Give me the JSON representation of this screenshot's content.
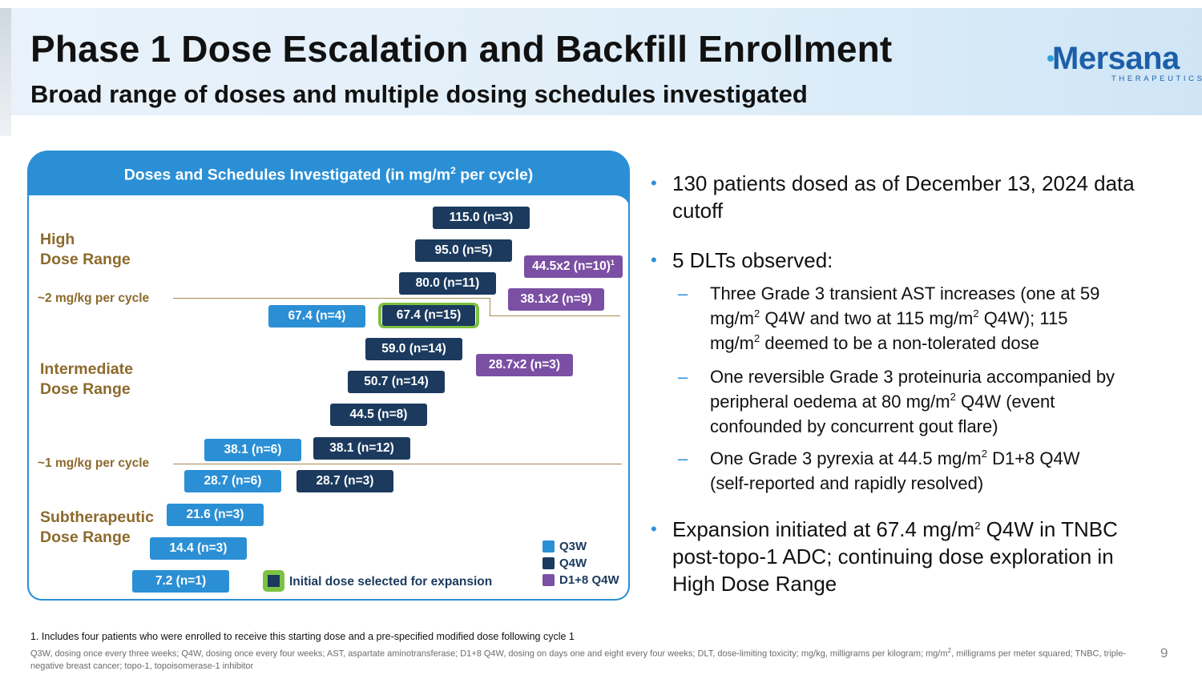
{
  "header": {
    "title": "Phase 1 Dose Escalation and Backfill Enrollment",
    "subtitle": "Broad range of doses and multiple dosing schedules investigated",
    "logo_text": "Mersana",
    "logo_sub": "THERAPEUTICS",
    "page_number": "9"
  },
  "panel": {
    "title_pre": "Doses and Schedules Investigated (in mg/m",
    "title_sup": "2",
    "title_post": " per cycle)",
    "ranges": {
      "high_l1": "High",
      "high_l2": "Dose Range",
      "intermediate_l1": "Intermediate",
      "intermediate_l2": "Dose Range",
      "sub_l1": "Subtherapeutic",
      "sub_l2": "Dose Range"
    },
    "threshold_2": "~2 mg/kg per cycle",
    "threshold_1": "~1 mg/kg per cycle",
    "bars": {
      "q4w_115": "115.0 (n=3)",
      "q4w_95": "95.0 (n=5)",
      "d18_445": "44.5x2 (n=10)",
      "d18_445_sup": "1",
      "q4w_80": "80.0 (n=11)",
      "d18_381": "38.1x2 (n=9)",
      "q3w_674": "67.4 (n=4)",
      "q4w_674": "67.4 (n=15)",
      "q4w_59": "59.0 (n=14)",
      "d18_287": "28.7x2 (n=3)",
      "q4w_507": "50.7 (n=14)",
      "q4w_445": "44.5 (n=8)",
      "q3w_381": "38.1 (n=6)",
      "q4w_381": "38.1 (n=12)",
      "q3w_287": "28.7 (n=6)",
      "q4w_287": "28.7 (n=3)",
      "q3w_216": "21.6 (n=3)",
      "q3w_144": "14.4 (n=3)",
      "q3w_72": "7.2 (n=1)"
    },
    "legend": {
      "q3w": "Q3W",
      "q4w": "Q4W",
      "d18": "D1+8 Q4W"
    },
    "expansion_label": "Initial dose selected for expansion",
    "colors": {
      "q3w": "#2b8fd5",
      "q4w": "#1b3a5e",
      "d18": "#7b4fa3",
      "highlight": "#7dc142",
      "range_text": "#8c6a2c"
    }
  },
  "bullets": {
    "b1": "130 patients dosed as of December 13, 2024 data cutoff",
    "b2": "5 DLTs observed:",
    "s1_a": "Three Grade 3 transient AST increases (one at 59",
    "s1_b": "mg/m",
    "s1_c": " Q4W and two at 115 mg/m",
    "s1_d": " Q4W); 115",
    "s1_e": "mg/m",
    "s1_f": " deemed to be a non-tolerated dose",
    "s2_a": "One reversible Grade 3 proteinuria accompanied by",
    "s2_b": "peripheral oedema at 80 mg/m",
    "s2_c": " Q4W (event",
    "s2_d": "confounded by concurrent gout flare)",
    "s3_a": "One Grade 3 pyrexia at 44.5 mg/m",
    "s3_b": " D1+8 Q4W",
    "s3_c": "(self-reported and rapidly resolved)",
    "b3_a": "Expansion initiated at 67.4 mg/m",
    "b3_b": " Q4W in TNBC",
    "b3_c": "post-topo-1 ADC; continuing dose exploration in",
    "b3_d": "High Dose Range",
    "sup2": "2"
  },
  "footnotes": {
    "f1": "1. Includes four patients who were enrolled to receive this starting dose and a pre-specified modified dose following cycle 1",
    "f2_a": "Q3W, dosing once every three weeks; Q4W, dosing once every four weeks; AST, aspartate aminotransferase; D1+8 Q4W, dosing on days one and eight every four weeks; DLT, dose-limiting toxicity; mg/kg, milligrams per kilogram; mg/m",
    "f2_sup": "2",
    "f2_b": ", milligrams per meter squared; TNBC, triple-negative breast cancer; topo-1, topoisomerase-1 inhibitor"
  }
}
